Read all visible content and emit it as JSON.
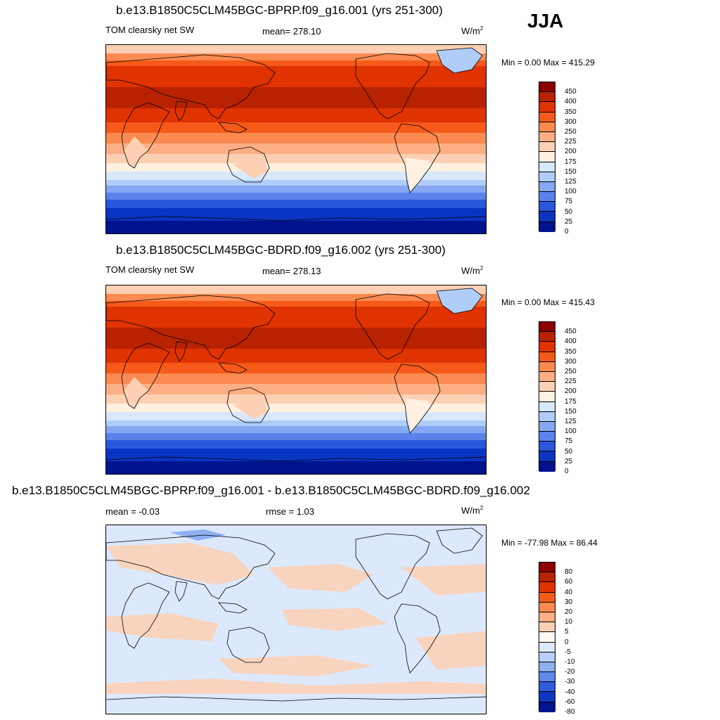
{
  "season": "JJA",
  "panels": [
    {
      "title": "b.e13.B1850C5CLM45BGC-BPRP.f09_g16.001 (yrs 251-300)",
      "left_label": "TOM clearsky net SW",
      "center_label": "mean= 278.10",
      "units_base": "W/m",
      "units_exp": "2",
      "minmax": "Min =   0.00 Max = 415.29",
      "colorbar": {
        "labels": [
          "450",
          "400",
          "350",
          "300",
          "250",
          "225",
          "200",
          "175",
          "150",
          "125",
          "100",
          "75",
          "50",
          "25",
          "0"
        ],
        "colors": [
          "#8c0000",
          "#b82200",
          "#e03300",
          "#f55a1a",
          "#fa8a50",
          "#fcae84",
          "#fdd0b4",
          "#fff0e0",
          "#d8e8fc",
          "#b0cdf8",
          "#86a8f2",
          "#5a82ea",
          "#2a57dc",
          "#0a34c2",
          "#00138f"
        ]
      },
      "chart_data": {
        "type": "heatmap",
        "title": "b.e13.B1850C5CLM45BGC-BPRP.f09_g16.001 (yrs 251-300)",
        "variable": "TOM clearsky net SW",
        "units": "W/m2",
        "mean": 278.1,
        "min": 0.0,
        "max": 415.29,
        "season": "JJA",
        "latitude_band_values": [
          175,
          200,
          300,
          350,
          400,
          425,
          400,
          375,
          350,
          300,
          250,
          200,
          150,
          100,
          50,
          25,
          0
        ]
      }
    },
    {
      "title": "b.e13.B1850C5CLM45BGC-BDRD.f09_g16.002 (yrs 251-300)",
      "left_label": "TOM clearsky net SW",
      "center_label": "mean= 278.13",
      "units_base": "W/m",
      "units_exp": "2",
      "minmax": "Min =   0.00 Max = 415.43",
      "colorbar": {
        "labels": [
          "450",
          "400",
          "350",
          "300",
          "250",
          "225",
          "200",
          "175",
          "150",
          "125",
          "100",
          "75",
          "50",
          "25",
          "0"
        ],
        "colors": [
          "#8c0000",
          "#b82200",
          "#e03300",
          "#f55a1a",
          "#fa8a50",
          "#fcae84",
          "#fdd0b4",
          "#fff0e0",
          "#d8e8fc",
          "#b0cdf8",
          "#86a8f2",
          "#5a82ea",
          "#2a57dc",
          "#0a34c2",
          "#00138f"
        ]
      },
      "chart_data": {
        "type": "heatmap",
        "title": "b.e13.B1850C5CLM45BGC-BDRD.f09_g16.002 (yrs 251-300)",
        "variable": "TOM clearsky net SW",
        "units": "W/m2",
        "mean": 278.13,
        "min": 0.0,
        "max": 415.43,
        "season": "JJA",
        "latitude_band_values": [
          175,
          200,
          300,
          350,
          400,
          425,
          400,
          375,
          350,
          300,
          250,
          200,
          150,
          100,
          50,
          25,
          0
        ]
      }
    },
    {
      "title": "b.e13.B1850C5CLM45BGC-BPRP.f09_g16.001 - b.e13.B1850C5CLM45BGC-BDRD.f09_g16.002",
      "left_label": "mean =  -0.03",
      "center_label": "rmse =   1.03",
      "units_base": "W/m",
      "units_exp": "2",
      "minmax": "Min = -77.98 Max =  86.44",
      "colorbar": {
        "labels": [
          "80",
          "60",
          "40",
          "30",
          "20",
          "10",
          "5",
          "0",
          "-5",
          "-10",
          "-20",
          "-30",
          "-40",
          "-60",
          "-80"
        ],
        "colors": [
          "#8c0000",
          "#b82200",
          "#e03300",
          "#f55a1a",
          "#fa8a50",
          "#fcae84",
          "#fdd0b4",
          "#fff8f0",
          "#dce9fc",
          "#b8d0f8",
          "#8eaff2",
          "#6088ea",
          "#2f5cdc",
          "#0e38c4",
          "#001590"
        ]
      },
      "chart_data": {
        "type": "heatmap",
        "title": "b.e13.B1850C5CLM45BGC-BPRP.f09_g16.001 - b.e13.B1850C5CLM45BGC-BDRD.f09_g16.002",
        "variable": "difference",
        "units": "W/m2",
        "mean": -0.03,
        "rmse": 1.03,
        "min": -77.98,
        "max": 86.44,
        "season": "JJA",
        "dominant_values": [
          0,
          -5,
          5
        ]
      }
    }
  ]
}
